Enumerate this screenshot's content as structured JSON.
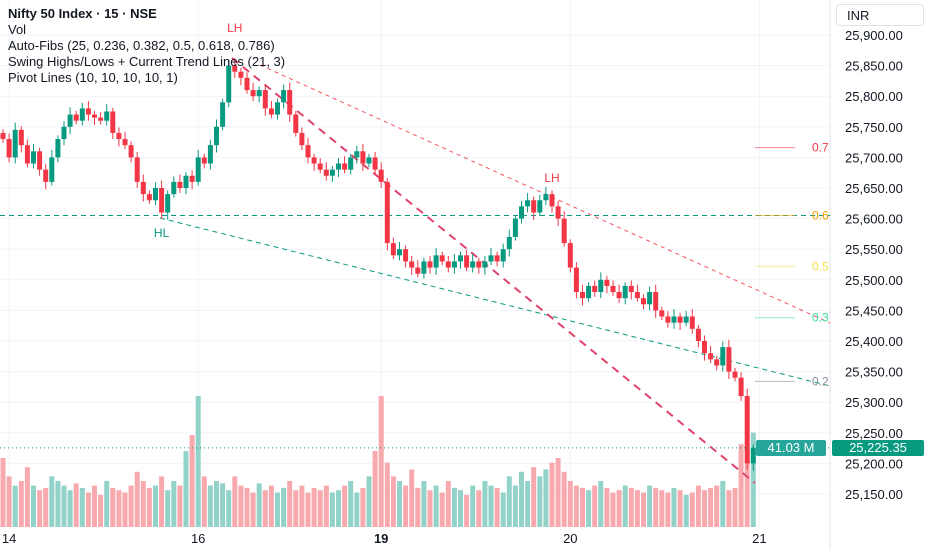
{
  "header": {
    "title": "Nifty 50 Index · 15 · NSE",
    "indicators": [
      "Vol",
      "Auto-Fibs (25, 0.236, 0.382, 0.5, 0.618, 0.786)",
      "Swing Highs/Lows + Current Trend Lines (21, 3)",
      "Pivot Lines (10, 10, 10, 10, 1)"
    ],
    "currency": "INR"
  },
  "badges": {
    "volume": "41.03 M",
    "price": "25,225.35"
  },
  "colors": {
    "up": "#089981",
    "down": "#f23645",
    "upVol": "#92d2c8",
    "downVol": "#f7a9ae"
  },
  "chart_data": {
    "type": "candlestick",
    "yticks": [
      "25,900.00",
      "25,850.00",
      "25,800.00",
      "25,750.00",
      "25,700.00",
      "25,650.00",
      "25,600.00",
      "25,550.00",
      "25,500.00",
      "25,450.00",
      "25,400.00",
      "25,350.00",
      "25,300.00",
      "25,250.00",
      "25,200.00",
      "25,150.00"
    ],
    "ylim": [
      25150,
      25900
    ],
    "xticks": [
      {
        "label": "14",
        "index": 1
      },
      {
        "label": "16",
        "index": 32
      },
      {
        "label": "19",
        "index": 62
      },
      {
        "label": "20",
        "index": 93
      },
      {
        "label": "21",
        "index": 124
      }
    ],
    "closes": [
      25730,
      25700,
      25745,
      25720,
      25690,
      25710,
      25680,
      25660,
      25700,
      25730,
      25750,
      25770,
      25760,
      25780,
      25770,
      25765,
      25760,
      25775,
      25740,
      25730,
      25720,
      25700,
      25660,
      25640,
      25630,
      25650,
      25610,
      25640,
      25660,
      25650,
      25670,
      25660,
      25700,
      25690,
      25720,
      25750,
      25790,
      25850,
      25840,
      25830,
      25810,
      25800,
      25810,
      25780,
      25770,
      25790,
      25810,
      25770,
      25740,
      25720,
      25700,
      25690,
      25680,
      25670,
      25680,
      25690,
      25680,
      25700,
      25710,
      25690,
      25700,
      25680,
      25660,
      25560,
      25540,
      25550,
      25530,
      25520,
      25510,
      25530,
      25520,
      25540,
      25530,
      25520,
      25530,
      25540,
      25520,
      25530,
      25520,
      25530,
      25540,
      25530,
      25550,
      25570,
      25600,
      25620,
      25630,
      25610,
      25630,
      25640,
      25620,
      25600,
      25560,
      25520,
      25480,
      25470,
      25490,
      25480,
      25500,
      25490,
      25480,
      25470,
      25490,
      25480,
      25470,
      25460,
      25480,
      25450,
      25440,
      25430,
      25440,
      25430,
      25440,
      25420,
      25400,
      25380,
      25370,
      25360,
      25390,
      25350,
      25340,
      25310,
      25200,
      25225.35
    ],
    "volumes": [
      30,
      22,
      18,
      20,
      26,
      18,
      16,
      17,
      22,
      20,
      18,
      16,
      19,
      17,
      15,
      18,
      14,
      20,
      17,
      16,
      15,
      18,
      24,
      20,
      17,
      18,
      22,
      16,
      20,
      18,
      33,
      40,
      57,
      22,
      18,
      20,
      19,
      16,
      22,
      18,
      17,
      15,
      19,
      16,
      18,
      15,
      17,
      20,
      16,
      18,
      15,
      17,
      16,
      18,
      15,
      16,
      18,
      20,
      15,
      17,
      22,
      33,
      57,
      28,
      22,
      20,
      18,
      25,
      17,
      20,
      16,
      18,
      15,
      20,
      17,
      16,
      14,
      18,
      16,
      20,
      18,
      17,
      15,
      22,
      18,
      24,
      20,
      26,
      22,
      25,
      28,
      30,
      24,
      20,
      18,
      17,
      16,
      18,
      20,
      17,
      15,
      16,
      18,
      17,
      16,
      15,
      18,
      17,
      16,
      15,
      17,
      16,
      14,
      15,
      18,
      16,
      17,
      18,
      20,
      16,
      17,
      36,
      29,
      41.03
    ],
    "annotations": [
      {
        "text": "LH",
        "index": 38,
        "price": 25905,
        "color": "#f23645"
      },
      {
        "text": "LH",
        "index": 90,
        "price": 25660,
        "color": "#f23645"
      },
      {
        "text": "HL",
        "index": 26,
        "price": 25570,
        "color": "#089981"
      }
    ],
    "fibs": [
      {
        "label": "0.7",
        "price": 25716,
        "color": "#f23645"
      },
      {
        "label": "0.6",
        "price": 25605,
        "color": "#f59f00"
      },
      {
        "label": "0.5",
        "price": 25522,
        "color": "#f5e04a"
      },
      {
        "label": "0.3",
        "price": 25438,
        "color": "#3ddc97"
      },
      {
        "label": "0.2",
        "price": 25334,
        "color": "#8a8f98"
      }
    ]
  }
}
